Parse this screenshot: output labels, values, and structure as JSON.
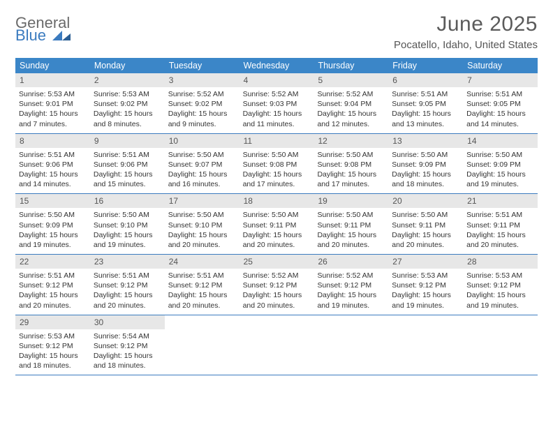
{
  "logo": {
    "line1": "General",
    "line2": "Blue"
  },
  "title": "June 2025",
  "location": "Pocatello, Idaho, United States",
  "colors": {
    "header_bar": "#3b86c8",
    "divider": "#3b7bbf",
    "daynum_bg": "#e7e7e7",
    "text": "#333333",
    "title_text": "#5b5b5b",
    "logo_gray": "#6a6a6a",
    "logo_blue": "#3b7bbf"
  },
  "daysOfWeek": [
    "Sunday",
    "Monday",
    "Tuesday",
    "Wednesday",
    "Thursday",
    "Friday",
    "Saturday"
  ],
  "weeks": [
    [
      {
        "n": "1",
        "sunrise": "5:53 AM",
        "sunset": "9:01 PM",
        "daylight": "15 hours and 7 minutes."
      },
      {
        "n": "2",
        "sunrise": "5:53 AM",
        "sunset": "9:02 PM",
        "daylight": "15 hours and 8 minutes."
      },
      {
        "n": "3",
        "sunrise": "5:52 AM",
        "sunset": "9:02 PM",
        "daylight": "15 hours and 9 minutes."
      },
      {
        "n": "4",
        "sunrise": "5:52 AM",
        "sunset": "9:03 PM",
        "daylight": "15 hours and 11 minutes."
      },
      {
        "n": "5",
        "sunrise": "5:52 AM",
        "sunset": "9:04 PM",
        "daylight": "15 hours and 12 minutes."
      },
      {
        "n": "6",
        "sunrise": "5:51 AM",
        "sunset": "9:05 PM",
        "daylight": "15 hours and 13 minutes."
      },
      {
        "n": "7",
        "sunrise": "5:51 AM",
        "sunset": "9:05 PM",
        "daylight": "15 hours and 14 minutes."
      }
    ],
    [
      {
        "n": "8",
        "sunrise": "5:51 AM",
        "sunset": "9:06 PM",
        "daylight": "15 hours and 14 minutes."
      },
      {
        "n": "9",
        "sunrise": "5:51 AM",
        "sunset": "9:06 PM",
        "daylight": "15 hours and 15 minutes."
      },
      {
        "n": "10",
        "sunrise": "5:50 AM",
        "sunset": "9:07 PM",
        "daylight": "15 hours and 16 minutes."
      },
      {
        "n": "11",
        "sunrise": "5:50 AM",
        "sunset": "9:08 PM",
        "daylight": "15 hours and 17 minutes."
      },
      {
        "n": "12",
        "sunrise": "5:50 AM",
        "sunset": "9:08 PM",
        "daylight": "15 hours and 17 minutes."
      },
      {
        "n": "13",
        "sunrise": "5:50 AM",
        "sunset": "9:09 PM",
        "daylight": "15 hours and 18 minutes."
      },
      {
        "n": "14",
        "sunrise": "5:50 AM",
        "sunset": "9:09 PM",
        "daylight": "15 hours and 19 minutes."
      }
    ],
    [
      {
        "n": "15",
        "sunrise": "5:50 AM",
        "sunset": "9:09 PM",
        "daylight": "15 hours and 19 minutes."
      },
      {
        "n": "16",
        "sunrise": "5:50 AM",
        "sunset": "9:10 PM",
        "daylight": "15 hours and 19 minutes."
      },
      {
        "n": "17",
        "sunrise": "5:50 AM",
        "sunset": "9:10 PM",
        "daylight": "15 hours and 20 minutes."
      },
      {
        "n": "18",
        "sunrise": "5:50 AM",
        "sunset": "9:11 PM",
        "daylight": "15 hours and 20 minutes."
      },
      {
        "n": "19",
        "sunrise": "5:50 AM",
        "sunset": "9:11 PM",
        "daylight": "15 hours and 20 minutes."
      },
      {
        "n": "20",
        "sunrise": "5:50 AM",
        "sunset": "9:11 PM",
        "daylight": "15 hours and 20 minutes."
      },
      {
        "n": "21",
        "sunrise": "5:51 AM",
        "sunset": "9:11 PM",
        "daylight": "15 hours and 20 minutes."
      }
    ],
    [
      {
        "n": "22",
        "sunrise": "5:51 AM",
        "sunset": "9:12 PM",
        "daylight": "15 hours and 20 minutes."
      },
      {
        "n": "23",
        "sunrise": "5:51 AM",
        "sunset": "9:12 PM",
        "daylight": "15 hours and 20 minutes."
      },
      {
        "n": "24",
        "sunrise": "5:51 AM",
        "sunset": "9:12 PM",
        "daylight": "15 hours and 20 minutes."
      },
      {
        "n": "25",
        "sunrise": "5:52 AM",
        "sunset": "9:12 PM",
        "daylight": "15 hours and 20 minutes."
      },
      {
        "n": "26",
        "sunrise": "5:52 AM",
        "sunset": "9:12 PM",
        "daylight": "15 hours and 19 minutes."
      },
      {
        "n": "27",
        "sunrise": "5:53 AM",
        "sunset": "9:12 PM",
        "daylight": "15 hours and 19 minutes."
      },
      {
        "n": "28",
        "sunrise": "5:53 AM",
        "sunset": "9:12 PM",
        "daylight": "15 hours and 19 minutes."
      }
    ],
    [
      {
        "n": "29",
        "sunrise": "5:53 AM",
        "sunset": "9:12 PM",
        "daylight": "15 hours and 18 minutes."
      },
      {
        "n": "30",
        "sunrise": "5:54 AM",
        "sunset": "9:12 PM",
        "daylight": "15 hours and 18 minutes."
      },
      null,
      null,
      null,
      null,
      null
    ]
  ],
  "labels": {
    "sunrise": "Sunrise:",
    "sunset": "Sunset:",
    "daylight": "Daylight:"
  }
}
